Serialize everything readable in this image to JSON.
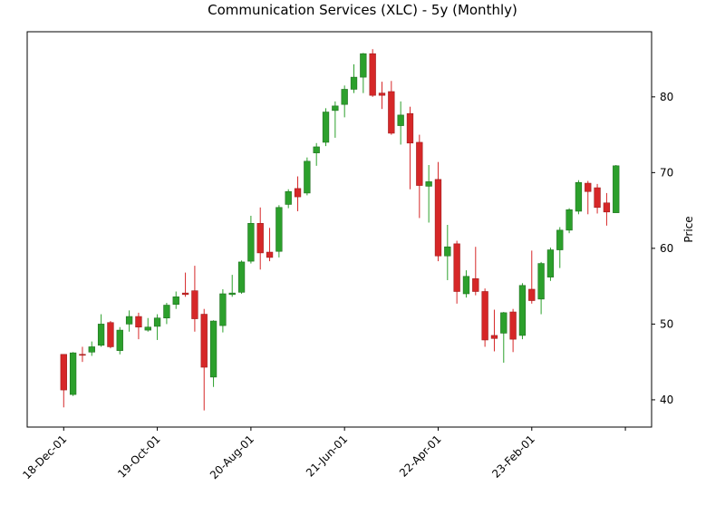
{
  "chart_data": {
    "type": "candlestick",
    "title": "Communication Services (XLC) - 5y (Monthly)",
    "ylabel": "Price",
    "categories": [
      "18-Dec-01",
      null,
      null,
      null,
      null,
      null,
      null,
      null,
      null,
      null,
      "19-Oct-01",
      null,
      null,
      null,
      null,
      null,
      null,
      null,
      null,
      null,
      "20-Aug-01",
      null,
      null,
      null,
      null,
      null,
      null,
      null,
      null,
      null,
      "21-Jun-01",
      null,
      null,
      null,
      null,
      null,
      null,
      null,
      null,
      null,
      "22-Apr-01",
      null,
      null,
      null,
      null,
      null,
      null,
      null,
      null,
      null,
      "23-Feb-01",
      null,
      null,
      null,
      null,
      null,
      null,
      null,
      null,
      null
    ],
    "open": [
      46,
      40.7,
      46,
      46.3,
      47.2,
      50.2,
      46.5,
      50,
      51,
      49.2,
      49.7,
      50.8,
      52.6,
      54.1,
      54.4,
      51.3,
      43,
      49.8,
      53.9,
      54.2,
      58.3,
      63.3,
      59.5,
      59.6,
      65.8,
      67.9,
      67.3,
      72.6,
      74,
      78.2,
      79,
      81,
      82.6,
      85.7,
      80.5,
      80.7,
      76.2,
      77.8,
      74,
      68.2,
      69.1,
      59,
      60.6,
      54,
      56,
      54.3,
      48.5,
      48.8,
      51.6,
      48.5,
      54.6,
      53.3,
      56.2,
      59.8,
      62.4,
      64.9,
      68.6,
      68,
      66,
      64.7
    ],
    "high": [
      46,
      46.3,
      47,
      47.7,
      51.3,
      50.4,
      49.6,
      51.8,
      51.5,
      50.8,
      51.3,
      52.8,
      54.3,
      56.8,
      57.7,
      52,
      50.5,
      54.6,
      56.5,
      58.4,
      64.3,
      65.4,
      62.7,
      65.7,
      67.8,
      69.5,
      72,
      73.9,
      78.5,
      79.4,
      81.5,
      84.3,
      85.8,
      86.3,
      82,
      82.1,
      79.4,
      78.7,
      75,
      71,
      71.4,
      63.1,
      61,
      57.1,
      60.2,
      54.7,
      51.9,
      51.6,
      52,
      55.4,
      59.7,
      58.2,
      60.1,
      62.8,
      65.3,
      69,
      68.9,
      68.5,
      67.3,
      71
    ],
    "low": [
      39,
      40.5,
      45,
      45.8,
      47,
      46.8,
      46,
      49,
      48,
      49,
      47.9,
      50,
      52,
      53.6,
      49,
      38.6,
      41.7,
      48.9,
      53.6,
      54,
      58,
      57.2,
      58.3,
      58.8,
      65.3,
      64.9,
      67,
      70.9,
      73.5,
      74.6,
      77.3,
      80.5,
      80.5,
      80,
      78.4,
      75,
      73.7,
      67.8,
      64,
      63.4,
      58.3,
      55.8,
      52.7,
      53.5,
      53.8,
      47,
      46.4,
      44.9,
      46.3,
      48,
      52.7,
      51.3,
      55.7,
      57.4,
      62,
      64.5,
      64.5,
      64.6,
      63,
      64.7
    ],
    "close": [
      41.3,
      46.2,
      45.9,
      47,
      50,
      47,
      49.2,
      51,
      49.6,
      49.6,
      50.8,
      52.5,
      53.6,
      53.9,
      50.7,
      44.3,
      50.4,
      54,
      54.1,
      58.2,
      63.3,
      59.4,
      58.8,
      65.4,
      67.5,
      66.8,
      71.5,
      73.4,
      78,
      78.8,
      81,
      82.6,
      85.7,
      80.2,
      80.2,
      75.2,
      77.6,
      73.9,
      68.3,
      68.8,
      59,
      60.2,
      54.3,
      56.3,
      54.3,
      47.9,
      48.1,
      51.5,
      48,
      55.1,
      53.1,
      58,
      59.8,
      62.4,
      65.1,
      68.7,
      67.5,
      65.4,
      64.8,
      70.9
    ],
    "up_color": "#2ca02c",
    "down_color": "#d62728",
    "xlim": [
      -3.9,
      62.8
    ],
    "xticks": [
      0,
      10,
      20,
      30,
      40,
      50,
      60
    ],
    "ylim": [
      36.4,
      88.6
    ],
    "yticks": [
      40,
      50,
      60,
      70,
      80
    ]
  }
}
